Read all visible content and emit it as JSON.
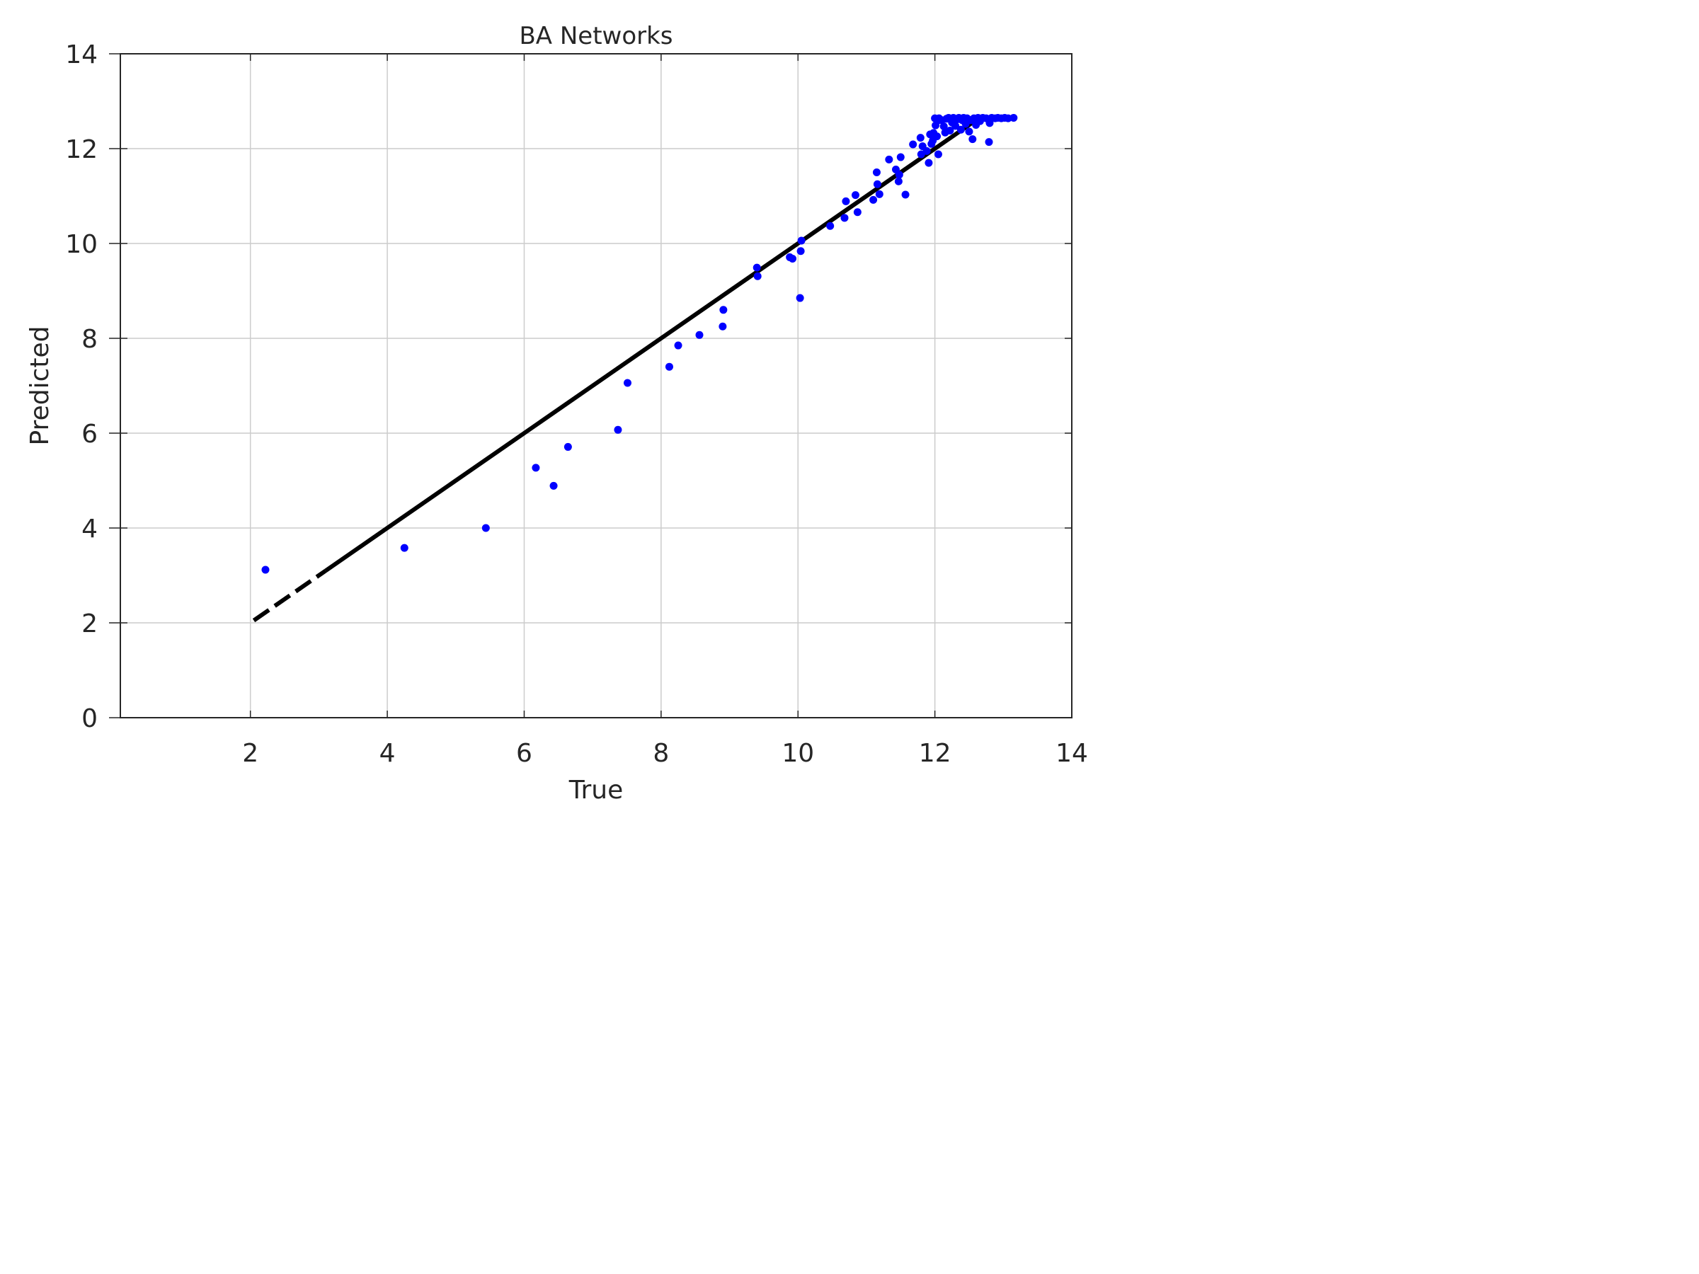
{
  "chart_data": {
    "type": "scatter",
    "title": "BA Networks",
    "xlabel": "True",
    "ylabel": "Predicted",
    "xlim": [
      0.1,
      14.0
    ],
    "ylim": [
      0,
      14
    ],
    "xticks": [
      2,
      4,
      6,
      8,
      10,
      12,
      14
    ],
    "yticks": [
      0,
      2,
      4,
      6,
      8,
      10,
      12,
      14
    ],
    "xtick_labels": [
      "2",
      "4",
      "6",
      "8",
      "10",
      "12",
      "14"
    ],
    "ytick_labels": [
      "0",
      "2",
      "4",
      "6",
      "8",
      "10",
      "12",
      "14"
    ],
    "grid": true,
    "legend": "none",
    "colors": {
      "points": "#0000ff",
      "reference_line": "#000000",
      "grid": "#cccccc",
      "axes": "#262626"
    },
    "reference_line": {
      "style": "solid with dashed low end",
      "x": [
        2.05,
        12.65
      ],
      "y": [
        2.05,
        12.65
      ],
      "dashed_until_x": 3.1
    },
    "series": [
      {
        "points": [
          [
            2.22,
            3.12
          ],
          [
            4.25,
            3.58
          ],
          [
            5.44,
            4.0
          ],
          [
            6.17,
            5.27
          ],
          [
            6.43,
            4.89
          ],
          [
            6.64,
            5.71
          ],
          [
            7.37,
            6.07
          ],
          [
            7.51,
            7.06
          ],
          [
            8.12,
            7.4
          ],
          [
            8.25,
            7.85
          ],
          [
            8.56,
            8.07
          ],
          [
            8.9,
            8.25
          ],
          [
            8.91,
            8.6
          ],
          [
            9.4,
            9.49
          ],
          [
            9.41,
            9.31
          ],
          [
            9.88,
            9.71
          ],
          [
            9.92,
            9.68
          ],
          [
            10.03,
            8.85
          ],
          [
            10.04,
            9.84
          ],
          [
            10.05,
            10.06
          ],
          [
            10.47,
            10.37
          ],
          [
            10.68,
            10.54
          ],
          [
            10.7,
            10.89
          ],
          [
            10.84,
            11.02
          ],
          [
            10.87,
            10.66
          ],
          [
            11.1,
            10.92
          ],
          [
            11.15,
            11.5
          ],
          [
            11.16,
            11.25
          ],
          [
            11.19,
            11.04
          ],
          [
            11.33,
            11.77
          ],
          [
            11.43,
            11.56
          ],
          [
            11.47,
            11.31
          ],
          [
            11.48,
            11.45
          ],
          [
            11.5,
            11.82
          ],
          [
            11.57,
            11.03
          ],
          [
            11.68,
            12.09
          ],
          [
            11.79,
            12.23
          ],
          [
            11.8,
            11.88
          ],
          [
            11.82,
            12.05
          ],
          [
            11.88,
            11.95
          ],
          [
            11.91,
            11.7
          ],
          [
            11.93,
            12.3
          ],
          [
            11.95,
            12.1
          ],
          [
            11.97,
            12.17
          ],
          [
            11.98,
            12.33
          ],
          [
            12.0,
            12.64
          ],
          [
            12.01,
            12.49
          ],
          [
            12.03,
            12.26
          ],
          [
            12.04,
            12.59
          ],
          [
            12.05,
            11.88
          ],
          [
            12.06,
            12.64
          ],
          [
            12.1,
            12.6
          ],
          [
            12.13,
            12.47
          ],
          [
            12.15,
            12.34
          ],
          [
            12.17,
            12.63
          ],
          [
            12.2,
            12.65
          ],
          [
            12.22,
            12.38
          ],
          [
            12.25,
            12.55
          ],
          [
            12.27,
            12.65
          ],
          [
            12.3,
            12.48
          ],
          [
            12.33,
            12.62
          ],
          [
            12.35,
            12.65
          ],
          [
            12.38,
            12.4
          ],
          [
            12.4,
            12.6
          ],
          [
            12.42,
            12.65
          ],
          [
            12.45,
            12.52
          ],
          [
            12.47,
            12.64
          ],
          [
            12.5,
            12.36
          ],
          [
            12.52,
            12.6
          ],
          [
            12.55,
            12.2
          ],
          [
            12.57,
            12.64
          ],
          [
            12.6,
            12.5
          ],
          [
            12.63,
            12.65
          ],
          [
            12.66,
            12.58
          ],
          [
            12.7,
            12.65
          ],
          [
            12.75,
            12.64
          ],
          [
            12.79,
            12.14
          ],
          [
            12.8,
            12.54
          ],
          [
            12.83,
            12.65
          ],
          [
            12.88,
            12.64
          ],
          [
            12.92,
            12.65
          ],
          [
            12.97,
            12.64
          ],
          [
            13.02,
            12.65
          ],
          [
            13.07,
            12.64
          ],
          [
            13.15,
            12.65
          ]
        ]
      }
    ]
  }
}
